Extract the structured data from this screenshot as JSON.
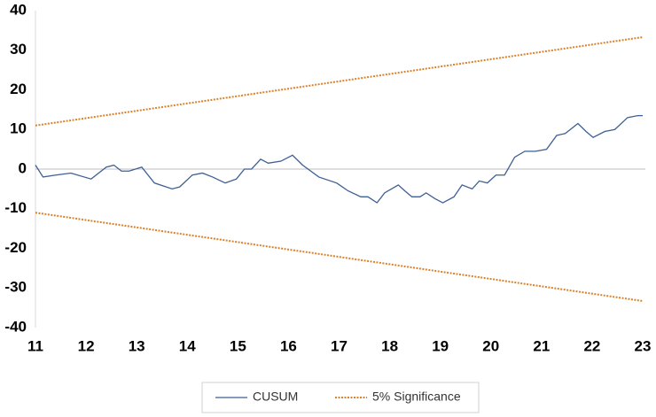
{
  "chart_data": {
    "type": "line",
    "xlim": [
      11,
      23
    ],
    "xticks": [
      11,
      12,
      13,
      14,
      15,
      16,
      17,
      18,
      19,
      20,
      21,
      22,
      23
    ],
    "ylim": [
      -40,
      40
    ],
    "yticks": [
      -40,
      -30,
      -20,
      -10,
      0,
      10,
      20,
      30,
      40
    ],
    "series": [
      {
        "name": "CUSUM",
        "color": "#3e5f93",
        "dashed": false,
        "x": [
          11.0,
          11.15,
          11.4,
          11.7,
          12.1,
          12.4,
          12.55,
          12.7,
          12.85,
          13.1,
          13.35,
          13.7,
          13.85,
          14.1,
          14.3,
          14.5,
          14.75,
          14.97,
          15.13,
          15.27,
          15.45,
          15.6,
          15.85,
          16.08,
          16.28,
          16.6,
          16.95,
          17.18,
          17.43,
          17.57,
          17.75,
          17.9,
          18.17,
          18.3,
          18.44,
          18.6,
          18.72,
          18.9,
          19.05,
          19.27,
          19.43,
          19.63,
          19.77,
          19.93,
          20.1,
          20.27,
          20.47,
          20.67,
          20.88,
          21.1,
          21.3,
          21.47,
          21.72,
          21.88,
          22.02,
          22.25,
          22.45,
          22.7,
          22.9,
          23.0
        ],
        "values": [
          1,
          -2,
          -1.5,
          -1,
          -2.5,
          0.5,
          1,
          -0.5,
          -0.5,
          0.5,
          -3.5,
          -5,
          -4.5,
          -1.5,
          -1,
          -2,
          -3.5,
          -2.5,
          0,
          0,
          2.5,
          1.5,
          2,
          3.5,
          1,
          -2,
          -3.5,
          -5.5,
          -7,
          -7,
          -8.5,
          -6,
          -4,
          -5.5,
          -7,
          -7,
          -6,
          -7.5,
          -8.5,
          -7,
          -4,
          -5,
          -3,
          -3.5,
          -1.5,
          -1.5,
          3,
          4.5,
          4.5,
          5,
          8.5,
          9,
          11.5,
          9.5,
          8,
          9.5,
          10,
          13,
          13.5,
          13.5
        ]
      },
      {
        "name": "5% Significance",
        "color": "#d9822b",
        "dashed": true,
        "x": [
          11,
          23
        ],
        "values": [
          11,
          33.3
        ],
        "lower": [
          -11,
          -33.3
        ]
      }
    ]
  }
}
